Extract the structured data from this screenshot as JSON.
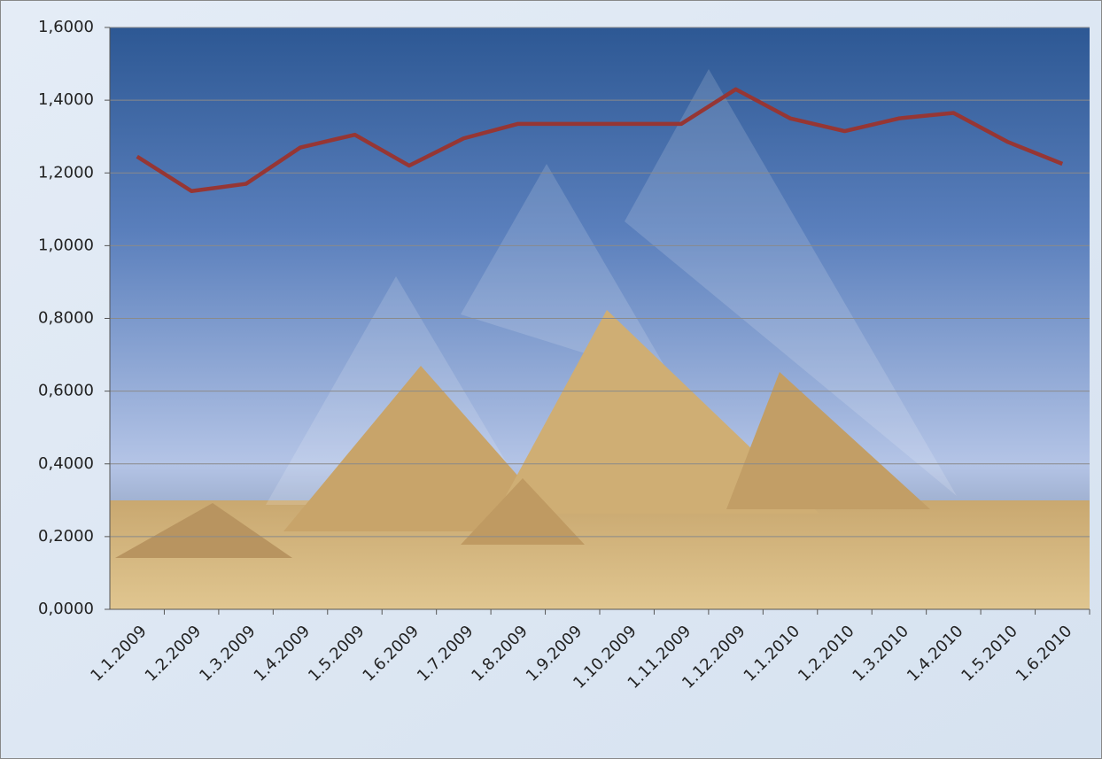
{
  "chart_data": {
    "type": "line",
    "categories": [
      "1.1.2009",
      "1.2.2009",
      "1.3.2009",
      "1.4.2009",
      "1.5.2009",
      "1.6.2009",
      "1.7.2009",
      "1.8.2009",
      "1.9.2009",
      "1.10.2009",
      "1.11.2009",
      "1.12.2009",
      "1.1.2010",
      "1.2.2010",
      "1.3.2010",
      "1.4.2010",
      "1.5.2010",
      "1.6.2010"
    ],
    "series": [
      {
        "color": "#963634",
        "values": [
          1.245,
          1.15,
          1.17,
          1.27,
          1.305,
          1.22,
          1.295,
          1.335,
          1.335,
          1.335,
          1.335,
          1.43,
          1.35,
          1.315,
          1.35,
          1.365,
          1.285,
          1.225
        ]
      }
    ],
    "ylim": [
      0,
      1.6
    ],
    "yticks": [
      {
        "value": 0,
        "label": "0,0000"
      },
      {
        "value": 0.2,
        "label": "0,2000"
      },
      {
        "value": 0.4,
        "label": "0,4000"
      },
      {
        "value": 0.6,
        "label": "0,6000"
      },
      {
        "value": 0.8,
        "label": "0,8000"
      },
      {
        "value": 1.0,
        "label": "1,0000"
      },
      {
        "value": 1.2,
        "label": "1,2000"
      },
      {
        "value": 1.4,
        "label": "1,4000"
      },
      {
        "value": 1.6,
        "label": "1,6000"
      }
    ],
    "grid": true
  }
}
